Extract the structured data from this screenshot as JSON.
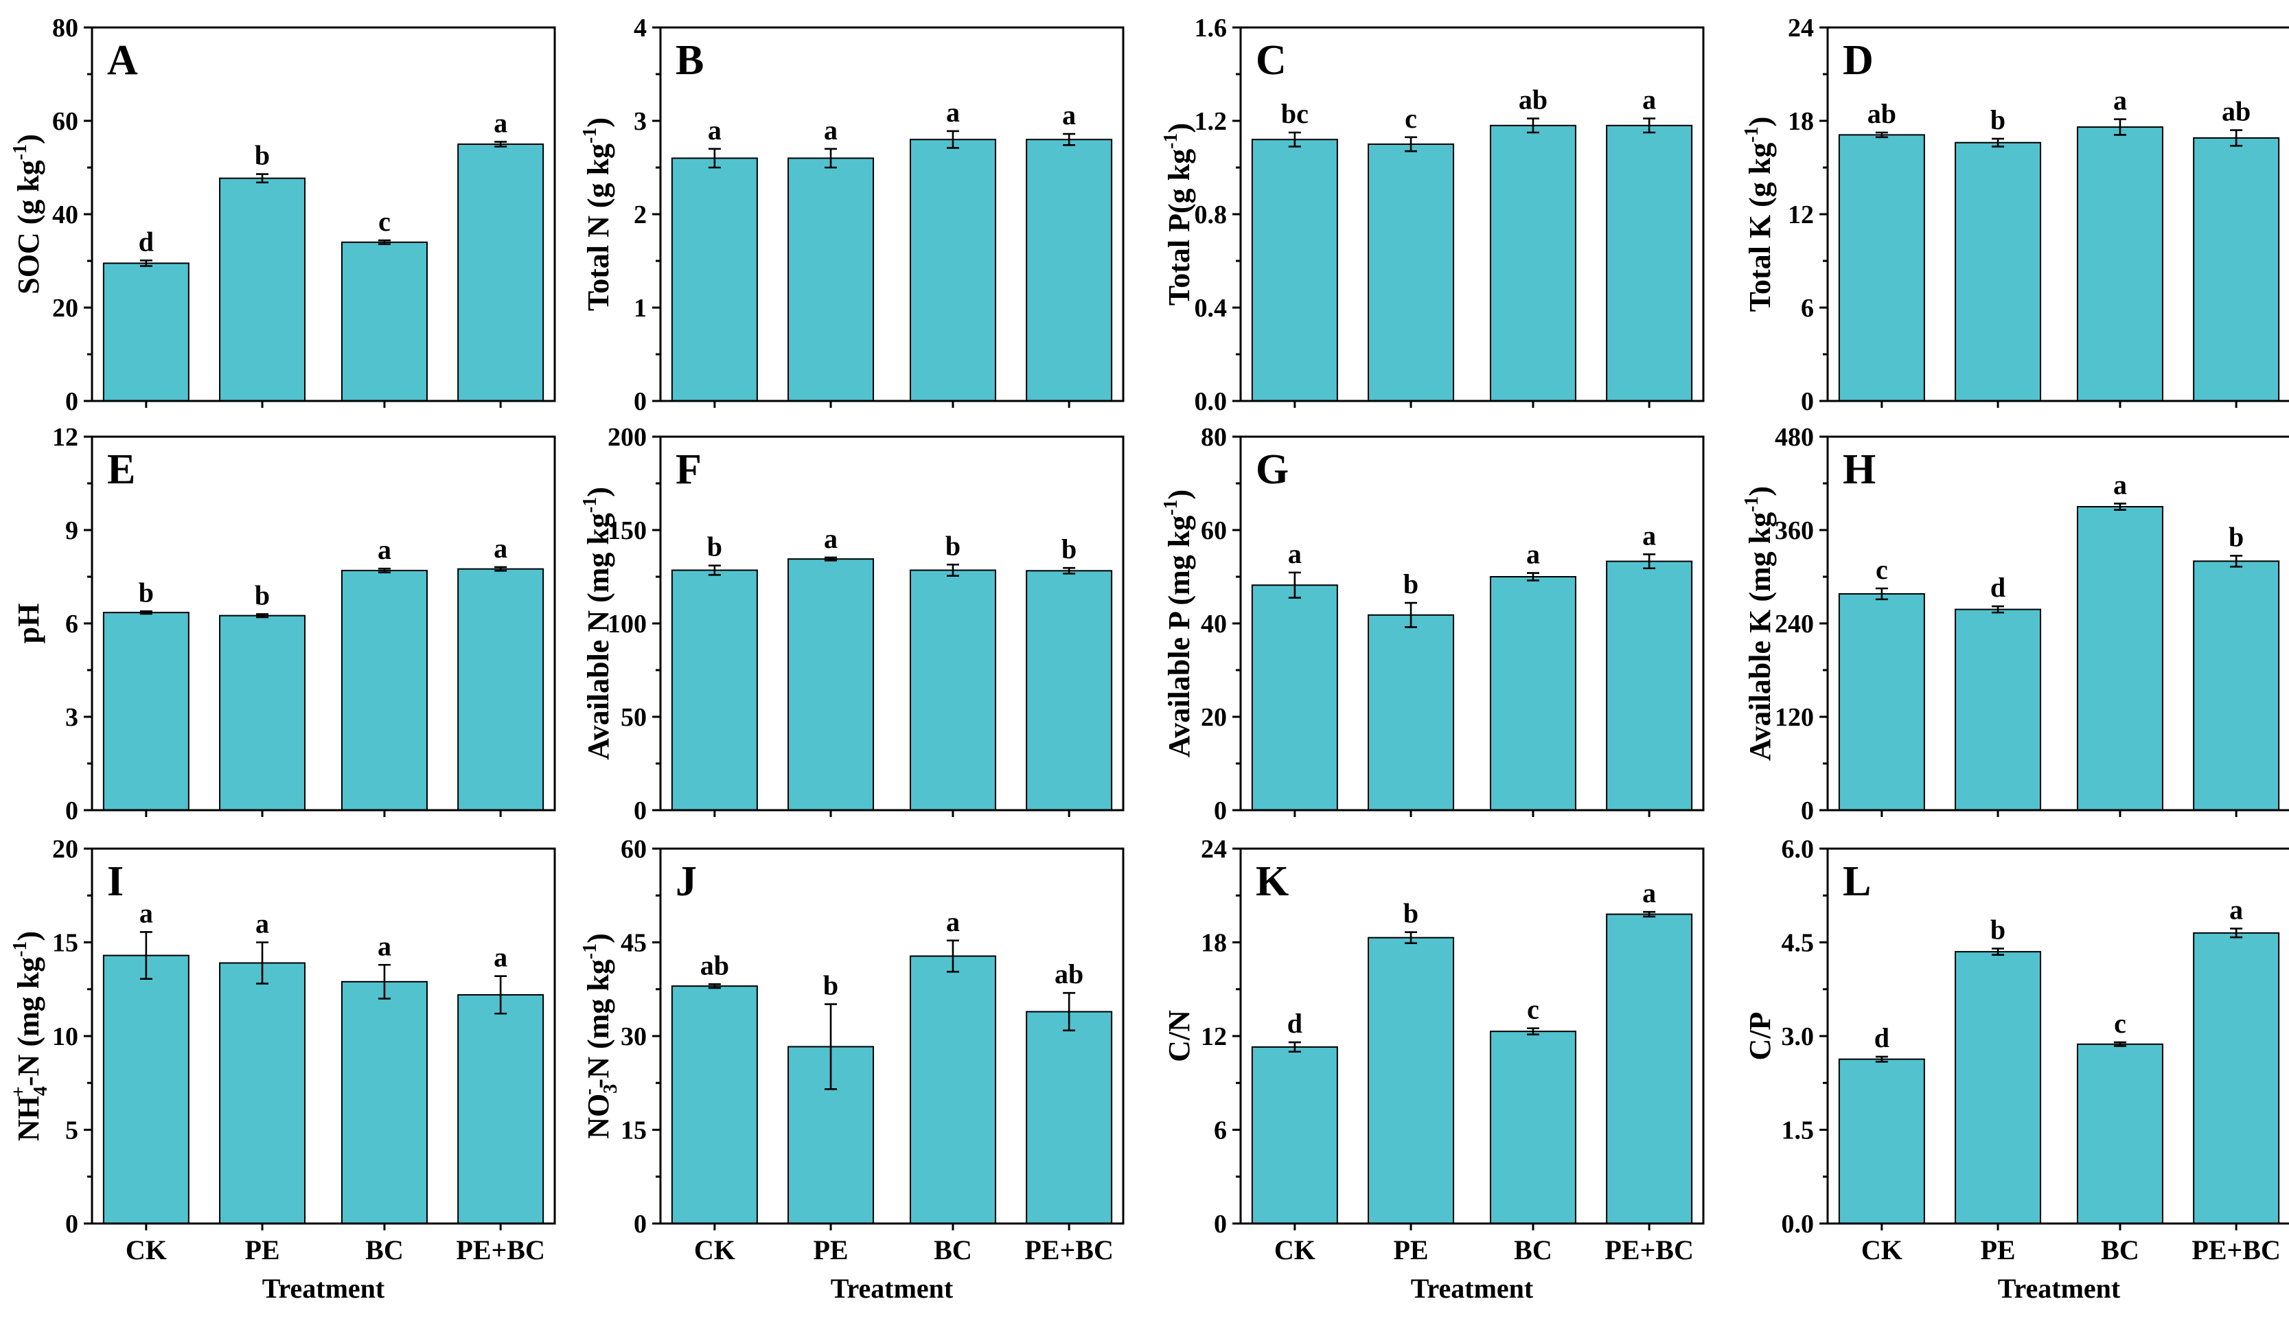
{
  "figure": {
    "xlabel": "Treatment",
    "bar_color": "#52C2CF",
    "text_color": "#000000"
  },
  "chart_data": [
    {
      "panel": "A",
      "type": "bar",
      "ylabel": "SOC (g kg",
      "ylabel_sup": "-1",
      "ylabel_tail": ")",
      "categories": [
        "CK",
        "PE",
        "BC",
        "PE+BC"
      ],
      "values": [
        29.5,
        47.7,
        34.0,
        55.0
      ],
      "errors": [
        0.6,
        0.9,
        0.4,
        0.5
      ],
      "letters": [
        "d",
        "b",
        "c",
        "a"
      ],
      "ylim": [
        0,
        80
      ],
      "yticks": [
        "0",
        "20",
        "40",
        "60",
        "80"
      ]
    },
    {
      "panel": "B",
      "type": "bar",
      "ylabel": "Total N (g kg",
      "ylabel_sup": "-1",
      "ylabel_tail": ")",
      "categories": [
        "CK",
        "PE",
        "BC",
        "PE+BC"
      ],
      "values": [
        2.6,
        2.6,
        2.8,
        2.8
      ],
      "errors": [
        0.1,
        0.1,
        0.09,
        0.06
      ],
      "letters": [
        "a",
        "a",
        "a",
        "a"
      ],
      "ylim": [
        0,
        4
      ],
      "yticks": [
        "0",
        "1",
        "2",
        "3",
        "4"
      ]
    },
    {
      "panel": "C",
      "type": "bar",
      "ylabel": "Total P(g kg",
      "ylabel_sup": "-1",
      "ylabel_tail": ")",
      "categories": [
        "CK",
        "PE",
        "BC",
        "PE+BC"
      ],
      "values": [
        1.12,
        1.1,
        1.18,
        1.18
      ],
      "errors": [
        0.03,
        0.03,
        0.03,
        0.03
      ],
      "letters": [
        "bc",
        "c",
        "ab",
        "a"
      ],
      "ylim": [
        0,
        1.6
      ],
      "yticks": [
        "0.0",
        "0.4",
        "0.8",
        "1.2",
        "1.6"
      ]
    },
    {
      "panel": "D",
      "type": "bar",
      "ylabel": "Total K (g kg",
      "ylabel_sup": "-1",
      "ylabel_tail": ")",
      "categories": [
        "CK",
        "PE",
        "BC",
        "PE+BC"
      ],
      "values": [
        17.1,
        16.6,
        17.6,
        16.9
      ],
      "errors": [
        0.15,
        0.25,
        0.5,
        0.5
      ],
      "letters": [
        "ab",
        "b",
        "a",
        "ab"
      ],
      "ylim": [
        0,
        24
      ],
      "yticks": [
        "0",
        "6",
        "12",
        "18",
        "24"
      ]
    },
    {
      "panel": "E",
      "type": "bar",
      "ylabel": "pH",
      "ylabel_sup": "",
      "ylabel_tail": "",
      "categories": [
        "CK",
        "PE",
        "BC",
        "PE+BC"
      ],
      "values": [
        6.35,
        6.25,
        7.7,
        7.75
      ],
      "errors": [
        0.04,
        0.05,
        0.06,
        0.06
      ],
      "letters": [
        "b",
        "b",
        "a",
        "a"
      ],
      "ylim": [
        0,
        12
      ],
      "yticks": [
        "0",
        "3",
        "6",
        "9",
        "12"
      ]
    },
    {
      "panel": "F",
      "type": "bar",
      "ylabel": "Available N (mg kg",
      "ylabel_sup": "-1",
      "ylabel_tail": ")",
      "categories": [
        "CK",
        "PE",
        "BC",
        "PE+BC"
      ],
      "values": [
        128.5,
        134.5,
        128.5,
        128.2
      ],
      "errors": [
        2.5,
        0.8,
        3.0,
        1.5
      ],
      "letters": [
        "b",
        "a",
        "b",
        "b"
      ],
      "ylim": [
        0,
        200
      ],
      "yticks": [
        "0",
        "50",
        "100",
        "150",
        "200"
      ]
    },
    {
      "panel": "G",
      "type": "bar",
      "ylabel": "Available P (mg kg",
      "ylabel_sup": "-1",
      "ylabel_tail": ")",
      "categories": [
        "CK",
        "PE",
        "BC",
        "PE+BC"
      ],
      "values": [
        48.2,
        41.8,
        50.0,
        53.3
      ],
      "errors": [
        2.7,
        2.6,
        0.8,
        1.5
      ],
      "letters": [
        "a",
        "b",
        "a",
        "a"
      ],
      "ylim": [
        0,
        80
      ],
      "yticks": [
        "0",
        "20",
        "40",
        "60",
        "80"
      ]
    },
    {
      "panel": "H",
      "type": "bar",
      "ylabel": "Available K (mg kg",
      "ylabel_sup": "-1",
      "ylabel_tail": ")",
      "categories": [
        "CK",
        "PE",
        "BC",
        "PE+BC"
      ],
      "values": [
        278,
        258,
        390,
        320
      ],
      "errors": [
        7,
        4,
        4,
        7
      ],
      "letters": [
        "c",
        "d",
        "a",
        "b"
      ],
      "ylim": [
        0,
        480
      ],
      "yticks": [
        "0",
        "120",
        "240",
        "360",
        "480"
      ]
    },
    {
      "panel": "I",
      "type": "bar",
      "ylabel": "NH",
      "ylabel_sub": "4",
      "ylabel_sup": "+",
      "ylabel_tail": "-N (mg kg",
      "ylabel_sup2": "-1",
      "ylabel_tail2": ")",
      "categories": [
        "CK",
        "PE",
        "BC",
        "PE+BC"
      ],
      "values": [
        14.3,
        13.9,
        12.9,
        12.2
      ],
      "errors": [
        1.25,
        1.1,
        0.9,
        1.0
      ],
      "letters": [
        "a",
        "a",
        "a",
        "a"
      ],
      "ylim": [
        0,
        20
      ],
      "yticks": [
        "0",
        "5",
        "10",
        "15",
        "20"
      ]
    },
    {
      "panel": "J",
      "type": "bar",
      "ylabel": "NO",
      "ylabel_sub": "3",
      "ylabel_sup": "-",
      "ylabel_tail": "-N (mg kg",
      "ylabel_sup2": "-1",
      "ylabel_tail2": ")",
      "categories": [
        "CK",
        "PE",
        "BC",
        "PE+BC"
      ],
      "values": [
        38.0,
        28.3,
        42.8,
        33.9
      ],
      "errors": [
        0.3,
        6.8,
        2.5,
        3.0
      ],
      "letters": [
        "ab",
        "b",
        "a",
        "ab"
      ],
      "ylim": [
        0,
        60
      ],
      "yticks": [
        "0",
        "15",
        "30",
        "45",
        "60"
      ]
    },
    {
      "panel": "K",
      "type": "bar",
      "ylabel": "C/N",
      "ylabel_sup": "",
      "ylabel_tail": "",
      "categories": [
        "CK",
        "PE",
        "BC",
        "PE+BC"
      ],
      "values": [
        11.3,
        18.3,
        12.3,
        19.8
      ],
      "errors": [
        0.3,
        0.35,
        0.2,
        0.15
      ],
      "letters": [
        "d",
        "b",
        "c",
        "a"
      ],
      "ylim": [
        0,
        24
      ],
      "yticks": [
        "0",
        "6",
        "12",
        "18",
        "24"
      ]
    },
    {
      "panel": "L",
      "type": "bar",
      "ylabel": "C/P",
      "ylabel_sup": "",
      "ylabel_tail": "",
      "categories": [
        "CK",
        "PE",
        "BC",
        "PE+BC"
      ],
      "values": [
        2.63,
        4.35,
        2.87,
        4.65
      ],
      "errors": [
        0.04,
        0.05,
        0.03,
        0.07
      ],
      "letters": [
        "d",
        "b",
        "c",
        "a"
      ],
      "ylim": [
        0,
        6
      ],
      "yticks": [
        "0.0",
        "1.5",
        "3.0",
        "4.5",
        "6.0"
      ]
    }
  ]
}
